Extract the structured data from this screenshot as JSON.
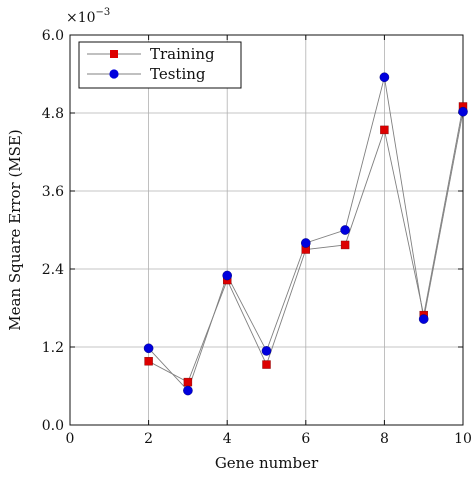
{
  "chart_data": {
    "type": "line",
    "xlabel": "Gene number",
    "ylabel": "Mean Square Error (MSE)",
    "y_multiplier": "×10",
    "y_exponent": "−3",
    "xlim": [
      0,
      10
    ],
    "ylim": [
      0.0,
      6.0
    ],
    "x_ticks": [
      0,
      2,
      4,
      6,
      8,
      10
    ],
    "y_ticks": [
      "0.0",
      "1.2",
      "2.4",
      "3.6",
      "4.8",
      "6.0"
    ],
    "grid": true,
    "legend_position": "top-left",
    "x": [
      2,
      3,
      4,
      5,
      6,
      7,
      8,
      9,
      10
    ],
    "series": [
      {
        "name": "Training",
        "marker": "square",
        "color": "#dd0000",
        "values": [
          0.98,
          0.66,
          2.23,
          0.93,
          2.7,
          2.77,
          4.54,
          1.69,
          4.9
        ]
      },
      {
        "name": "Testing",
        "marker": "circle",
        "color": "#0000dd",
        "values": [
          1.18,
          0.53,
          2.3,
          1.14,
          2.8,
          3.0,
          5.35,
          1.63,
          4.82
        ]
      }
    ],
    "line_color": "#808080"
  }
}
